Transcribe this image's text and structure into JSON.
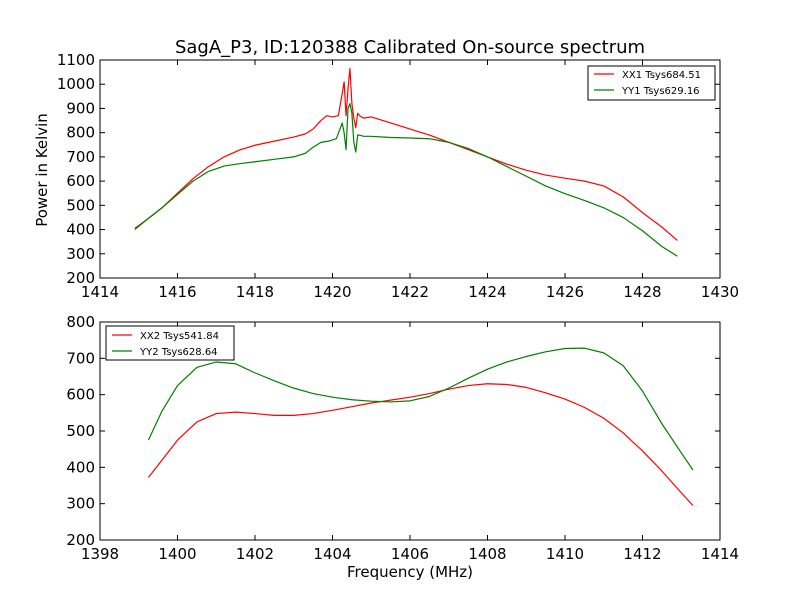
{
  "colors": {
    "xx": "#ff0000",
    "yy": "#008000",
    "axes": "#000000",
    "background": "#ffffff"
  },
  "chart_data": [
    {
      "type": "line",
      "title": "SagA_P3, ID:120388 Calibrated On-source spectrum",
      "xlabel": "",
      "ylabel": "Power in Kelvin",
      "xlim": [
        1414,
        1430
      ],
      "ylim": [
        200,
        1100
      ],
      "xticks": [
        1414,
        1416,
        1418,
        1420,
        1422,
        1424,
        1426,
        1428,
        1430
      ],
      "yticks": [
        200,
        300,
        400,
        500,
        600,
        700,
        800,
        900,
        1000,
        1100
      ],
      "grid": false,
      "legend": "top-right",
      "series": [
        {
          "name": "XX1 Tsys684.51",
          "color": "#ff0000",
          "points": [
            [
              1414.9,
              405
            ],
            [
              1415.2,
              440
            ],
            [
              1415.6,
              490
            ],
            [
              1416.0,
              550
            ],
            [
              1416.4,
              610
            ],
            [
              1416.8,
              660
            ],
            [
              1417.2,
              700
            ],
            [
              1417.6,
              728
            ],
            [
              1418.0,
              748
            ],
            [
              1418.5,
              765
            ],
            [
              1419.0,
              782
            ],
            [
              1419.3,
              795
            ],
            [
              1419.5,
              815
            ],
            [
              1419.7,
              850
            ],
            [
              1419.85,
              870
            ],
            [
              1420.0,
              865
            ],
            [
              1420.15,
              870
            ],
            [
              1420.25,
              960
            ],
            [
              1420.3,
              1010
            ],
            [
              1420.35,
              870
            ],
            [
              1420.4,
              980
            ],
            [
              1420.45,
              1065
            ],
            [
              1420.5,
              920
            ],
            [
              1420.55,
              860
            ],
            [
              1420.6,
              820
            ],
            [
              1420.65,
              880
            ],
            [
              1420.7,
              870
            ],
            [
              1420.8,
              860
            ],
            [
              1421.0,
              865
            ],
            [
              1421.5,
              840
            ],
            [
              1422.0,
              815
            ],
            [
              1422.5,
              790
            ],
            [
              1423.0,
              760
            ],
            [
              1423.5,
              730
            ],
            [
              1424.0,
              700
            ],
            [
              1424.5,
              670
            ],
            [
              1425.0,
              645
            ],
            [
              1425.5,
              625
            ],
            [
              1426.0,
              612
            ],
            [
              1426.5,
              600
            ],
            [
              1427.0,
              580
            ],
            [
              1427.5,
              535
            ],
            [
              1428.0,
              470
            ],
            [
              1428.5,
              410
            ],
            [
              1428.9,
              355
            ]
          ]
        },
        {
          "name": "YY1 Tsys629.16",
          "color": "#008000",
          "points": [
            [
              1414.9,
              400
            ],
            [
              1415.2,
              440
            ],
            [
              1415.6,
              490
            ],
            [
              1416.0,
              545
            ],
            [
              1416.4,
              600
            ],
            [
              1416.8,
              640
            ],
            [
              1417.2,
              662
            ],
            [
              1417.6,
              672
            ],
            [
              1418.0,
              680
            ],
            [
              1418.5,
              690
            ],
            [
              1419.0,
              700
            ],
            [
              1419.3,
              715
            ],
            [
              1419.5,
              740
            ],
            [
              1419.7,
              760
            ],
            [
              1419.9,
              765
            ],
            [
              1420.1,
              775
            ],
            [
              1420.25,
              840
            ],
            [
              1420.3,
              800
            ],
            [
              1420.35,
              730
            ],
            [
              1420.4,
              900
            ],
            [
              1420.45,
              920
            ],
            [
              1420.5,
              880
            ],
            [
              1420.55,
              760
            ],
            [
              1420.6,
              720
            ],
            [
              1420.65,
              790
            ],
            [
              1420.7,
              790
            ],
            [
              1420.8,
              785
            ],
            [
              1421.0,
              785
            ],
            [
              1421.5,
              780
            ],
            [
              1422.0,
              778
            ],
            [
              1422.5,
              775
            ],
            [
              1423.0,
              760
            ],
            [
              1423.5,
              735
            ],
            [
              1424.0,
              700
            ],
            [
              1424.5,
              660
            ],
            [
              1425.0,
              620
            ],
            [
              1425.5,
              580
            ],
            [
              1426.0,
              548
            ],
            [
              1426.5,
              520
            ],
            [
              1427.0,
              490
            ],
            [
              1427.5,
              450
            ],
            [
              1428.0,
              395
            ],
            [
              1428.5,
              330
            ],
            [
              1428.9,
              290
            ]
          ]
        }
      ]
    },
    {
      "type": "line",
      "title": "",
      "xlabel": "Frequency (MHz)",
      "ylabel": "",
      "xlim": [
        1398,
        1414
      ],
      "ylim": [
        200,
        800
      ],
      "xticks": [
        1398,
        1400,
        1402,
        1404,
        1406,
        1408,
        1410,
        1412,
        1414
      ],
      "yticks": [
        200,
        300,
        400,
        500,
        600,
        700,
        800
      ],
      "grid": false,
      "legend": "top-left",
      "series": [
        {
          "name": "XX2 Tsys541.84",
          "color": "#ff0000",
          "points": [
            [
              1399.25,
              372
            ],
            [
              1399.6,
              420
            ],
            [
              1400.0,
              475
            ],
            [
              1400.5,
              525
            ],
            [
              1401.0,
              548
            ],
            [
              1401.5,
              552
            ],
            [
              1402.0,
              548
            ],
            [
              1402.5,
              543
            ],
            [
              1403.0,
              543
            ],
            [
              1403.5,
              548
            ],
            [
              1404.0,
              557
            ],
            [
              1404.5,
              567
            ],
            [
              1405.0,
              577
            ],
            [
              1405.5,
              585
            ],
            [
              1406.0,
              593
            ],
            [
              1406.5,
              603
            ],
            [
              1407.0,
              615
            ],
            [
              1407.5,
              625
            ],
            [
              1408.0,
              630
            ],
            [
              1408.5,
              628
            ],
            [
              1409.0,
              620
            ],
            [
              1409.5,
              605
            ],
            [
              1410.0,
              588
            ],
            [
              1410.5,
              565
            ],
            [
              1411.0,
              535
            ],
            [
              1411.5,
              495
            ],
            [
              1412.0,
              445
            ],
            [
              1412.5,
              390
            ],
            [
              1413.0,
              330
            ],
            [
              1413.3,
              295
            ]
          ]
        },
        {
          "name": "YY2 Tsys628.64",
          "color": "#008000",
          "points": [
            [
              1399.25,
              475
            ],
            [
              1399.6,
              555
            ],
            [
              1400.0,
              625
            ],
            [
              1400.5,
              675
            ],
            [
              1401.0,
              690
            ],
            [
              1401.5,
              685
            ],
            [
              1402.0,
              660
            ],
            [
              1402.5,
              638
            ],
            [
              1403.0,
              618
            ],
            [
              1403.5,
              603
            ],
            [
              1404.0,
              593
            ],
            [
              1404.5,
              586
            ],
            [
              1405.0,
              582
            ],
            [
              1405.5,
              580
            ],
            [
              1406.0,
              583
            ],
            [
              1406.5,
              595
            ],
            [
              1407.0,
              618
            ],
            [
              1407.5,
              645
            ],
            [
              1408.0,
              670
            ],
            [
              1408.5,
              690
            ],
            [
              1409.0,
              705
            ],
            [
              1409.5,
              718
            ],
            [
              1410.0,
              727
            ],
            [
              1410.5,
              728
            ],
            [
              1411.0,
              715
            ],
            [
              1411.5,
              680
            ],
            [
              1412.0,
              610
            ],
            [
              1412.5,
              520
            ],
            [
              1413.0,
              440
            ],
            [
              1413.3,
              393
            ]
          ]
        }
      ]
    }
  ]
}
